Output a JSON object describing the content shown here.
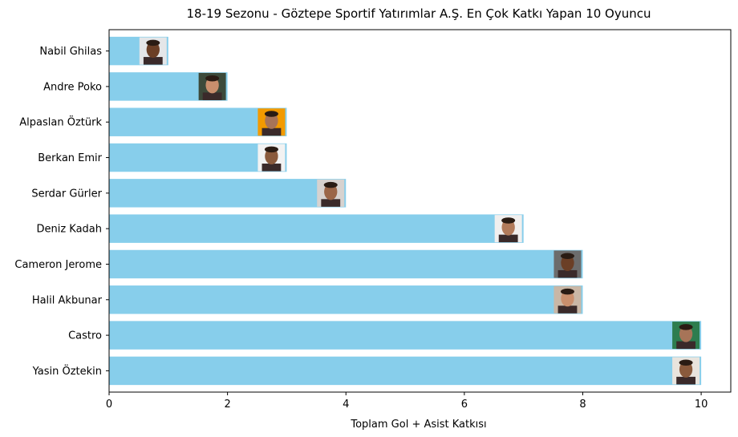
{
  "chart_data": {
    "type": "bar",
    "orientation": "horizontal",
    "title": "18-19 Sezonu - Göztepe Sportif Yatırımlar A.Ş. En Çok Katkı Yapan 10 Oyuncu",
    "xlabel": "Toplam Gol + Asist Katkısı",
    "ylabel": "",
    "categories": [
      "Yasin Öztekin",
      "Castro",
      "Halil Akbunar",
      "Cameron Jerome",
      "Deniz Kadah",
      "Serdar Gürler",
      "Berkan Emir",
      "Alpaslan Öztürk",
      "Andre Poko",
      "Nabil Ghilas"
    ],
    "values": [
      10,
      10,
      8,
      8,
      7,
      4,
      3,
      3,
      2,
      1
    ],
    "xlim": [
      0,
      10.5
    ],
    "xticks": [
      0,
      2,
      4,
      6,
      8,
      10
    ],
    "bar_color": "#87ceeb",
    "grid": false,
    "annotations": "player photo thumbnail at the end of each bar"
  }
}
